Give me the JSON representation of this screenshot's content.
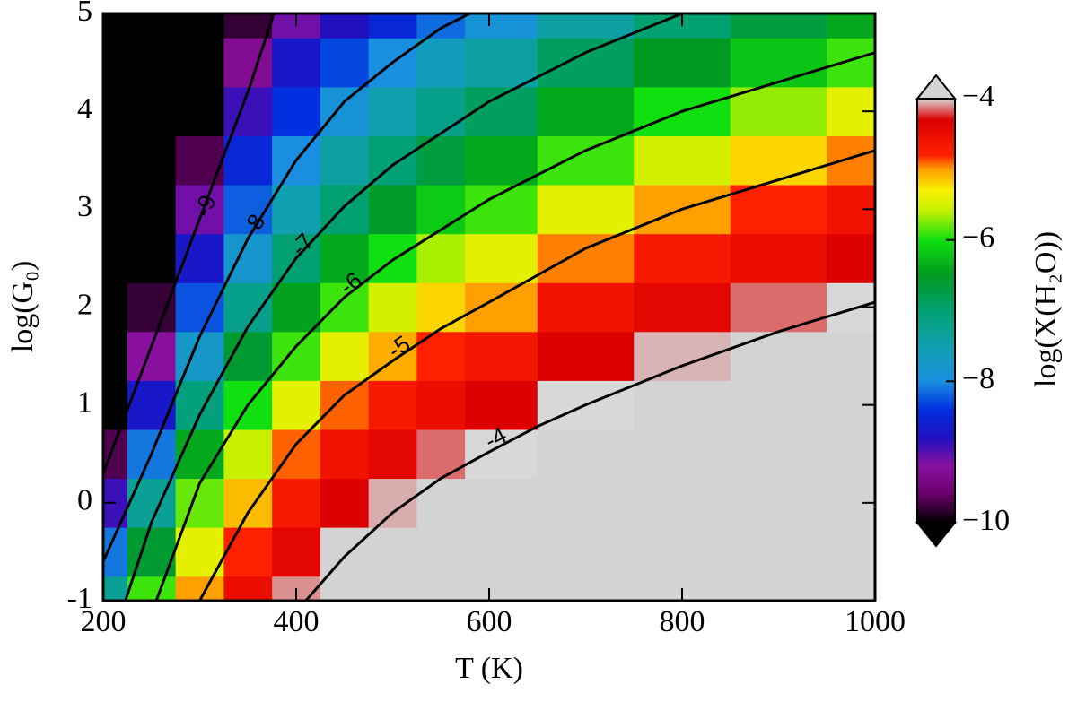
{
  "chart_data": {
    "type": "heatmap",
    "xlabel": "T (K)",
    "ylabel": "log(G₀)",
    "colorbar_label": "log(X(H₂O))",
    "xlim": [
      200,
      1000
    ],
    "ylim": [
      -1,
      5
    ],
    "xticks": [
      200,
      400,
      600,
      800,
      1000
    ],
    "yticks": [
      -1,
      0,
      1,
      2,
      3,
      4,
      5
    ],
    "x": [
      200,
      250,
      300,
      350,
      400,
      450,
      500,
      550,
      600,
      700,
      800,
      900,
      1000
    ],
    "y": [
      -1,
      -0.5,
      0,
      0.5,
      1,
      1.5,
      2,
      2.5,
      3,
      3.5,
      4,
      4.5,
      5
    ],
    "z": [
      [
        -7.3,
        -5.9,
        -5.0,
        -4.5,
        -4.1,
        -3.8,
        -3.6,
        -3.4,
        -3.3,
        -3.1,
        -3.0,
        -2.9,
        -2.8
      ],
      [
        -8.1,
        -6.6,
        -5.4,
        -4.8,
        -4.4,
        -3.95,
        -3.8,
        -3.6,
        -3.45,
        -3.3,
        -3.15,
        -3.05,
        -2.95
      ],
      [
        -8.9,
        -7.3,
        -5.8,
        -5.1,
        -4.7,
        -4.3,
        -4.06,
        -3.85,
        -3.7,
        -3.5,
        -3.35,
        -3.2,
        -3.1
      ],
      [
        -9.7,
        -8.1,
        -6.4,
        -5.55,
        -4.9,
        -4.6,
        -4.4,
        -4.15,
        -4.0,
        -3.75,
        -3.6,
        -3.45,
        -3.3
      ],
      [
        -10.5,
        -8.7,
        -7.1,
        -6.0,
        -5.4,
        -4.9,
        -4.7,
        -4.5,
        -4.3,
        -4.0,
        -3.8,
        -3.65,
        -3.5
      ],
      [
        -11,
        -9.2,
        -7.75,
        -6.6,
        -5.9,
        -5.4,
        -5.05,
        -4.8,
        -4.65,
        -4.3,
        -4.05,
        -3.9,
        -3.75
      ],
      [
        -11,
        -9.8,
        -8.25,
        -7.2,
        -6.45,
        -5.9,
        -5.5,
        -5.2,
        -5.0,
        -4.6,
        -4.4,
        -4.15,
        -4.0
      ],
      [
        -11,
        -10.3,
        -8.7,
        -7.8,
        -7.0,
        -6.4,
        -6.0,
        -5.65,
        -5.4,
        -4.95,
        -4.7,
        -4.5,
        -4.3
      ],
      [
        -11,
        -11,
        -9.1,
        -8.2,
        -7.5,
        -7.0,
        -6.55,
        -6.15,
        -5.9,
        -5.4,
        -5.0,
        -4.8,
        -4.6
      ],
      [
        -11,
        -11,
        -9.7,
        -8.5,
        -8.0,
        -7.4,
        -7.05,
        -6.7,
        -6.4,
        -5.9,
        -5.5,
        -5.2,
        -4.95
      ],
      [
        -11,
        -11,
        -10.2,
        -8.9,
        -8.4,
        -7.9,
        -7.5,
        -7.2,
        -6.9,
        -6.4,
        -6.0,
        -5.7,
        -5.4
      ],
      [
        -11,
        -11,
        -10.8,
        -9.3,
        -8.7,
        -8.3,
        -8.0,
        -7.65,
        -7.4,
        -6.9,
        -6.5,
        -6.2,
        -5.9
      ],
      [
        -11,
        -11,
        -11,
        -9.8,
        -9.1,
        -8.8,
        -8.5,
        -8.15,
        -7.9,
        -7.4,
        -7.0,
        -6.7,
        -6.4
      ]
    ],
    "zlim": [
      -10,
      -4
    ],
    "zticks": [
      {
        "value": -4,
        "label": "−4"
      },
      {
        "value": -6,
        "label": "−6"
      },
      {
        "value": -8,
        "label": "−8"
      },
      {
        "value": -10,
        "label": "−10"
      }
    ],
    "colormap": [
      {
        "value": -10,
        "color": "#000000"
      },
      {
        "value": -9.6,
        "color": "#6a006a"
      },
      {
        "value": -9.2,
        "color": "#8a10a0"
      },
      {
        "value": -8.8,
        "color": "#2010c0"
      },
      {
        "value": -8.4,
        "color": "#0030e0"
      },
      {
        "value": -8.0,
        "color": "#1a8ee0"
      },
      {
        "value": -7.5,
        "color": "#10a0b0"
      },
      {
        "value": -7.0,
        "color": "#00a070"
      },
      {
        "value": -6.5,
        "color": "#009a20"
      },
      {
        "value": -6.0,
        "color": "#10e010"
      },
      {
        "value": -5.6,
        "color": "#c0f000"
      },
      {
        "value": -5.3,
        "color": "#f8f000"
      },
      {
        "value": -5.0,
        "color": "#ffa000"
      },
      {
        "value": -4.8,
        "color": "#ff2000"
      },
      {
        "value": -4.3,
        "color": "#dd0000"
      },
      {
        "value": -4.0,
        "color": "#d8d8d8"
      }
    ],
    "over_color": "#d3d3d3",
    "under_color": "#000000",
    "contours": [
      {
        "level": -4,
        "x": [
          410,
          450,
          500,
          550,
          600,
          650,
          700,
          800,
          900,
          1000
        ],
        "y": [
          -1,
          -0.55,
          -0.1,
          0.25,
          0.52,
          0.78,
          1.0,
          1.4,
          1.75,
          2.05
        ]
      },
      {
        "level": -5,
        "x": [
          300,
          350,
          400,
          450,
          500,
          550,
          600,
          700,
          800,
          900,
          1000
        ],
        "y": [
          -1,
          -0.1,
          0.6,
          1.1,
          1.45,
          1.78,
          2.05,
          2.6,
          3.0,
          3.3,
          3.6
        ]
      },
      {
        "level": -6,
        "x": [
          255,
          300,
          350,
          400,
          450,
          500,
          600,
          700,
          800,
          900,
          1000
        ],
        "y": [
          -1,
          0.2,
          1.0,
          1.6,
          2.1,
          2.48,
          3.1,
          3.6,
          4.0,
          4.3,
          4.6
        ]
      },
      {
        "level": -7,
        "x": [
          223,
          250,
          300,
          350,
          400,
          450,
          500,
          600,
          700,
          800
        ],
        "y": [
          -1,
          -0.2,
          0.9,
          1.8,
          2.5,
          3.03,
          3.45,
          4.1,
          4.6,
          5.0
        ]
      },
      {
        "level": -8,
        "x": [
          200,
          250,
          300,
          350,
          400,
          450,
          500,
          550,
          580
        ],
        "y": [
          -0.6,
          0.5,
          1.7,
          2.7,
          3.5,
          4.1,
          4.5,
          4.85,
          5.0
        ]
      },
      {
        "level": -9,
        "x": [
          200,
          250,
          300,
          350,
          377
        ],
        "y": [
          0.3,
          1.6,
          2.9,
          4.2,
          5.0
        ]
      }
    ]
  }
}
